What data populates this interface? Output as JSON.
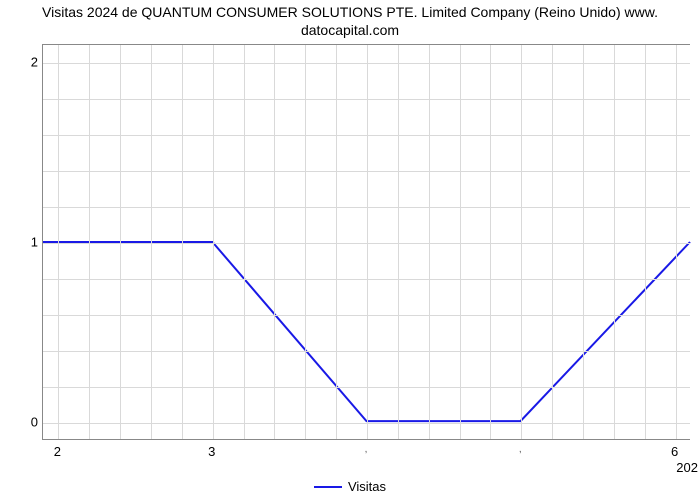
{
  "chart": {
    "type": "line",
    "title": "Visitas 2024 de QUANTUM CONSUMER SOLUTIONS PTE. Limited Company (Reino Unido) www.\ndatocapital.com",
    "title_fontsize": 14,
    "title_color": "#000000",
    "background_color": "#ffffff",
    "plot_border_color": "#888888",
    "grid_color": "#d9d9d9",
    "line_color": "#1919e6",
    "line_width": 2,
    "xlim": [
      1.9,
      6.1
    ],
    "ylim": [
      -0.1,
      2.1
    ],
    "x_major_ticks": [
      2,
      3,
      6
    ],
    "x_minor_ticks": [
      4,
      5
    ],
    "y_major_ticks": [
      0,
      1,
      2
    ],
    "y_minor_ticks": [],
    "x_minor_gridlines": [
      2.2,
      2.4,
      2.6,
      2.8,
      3.2,
      3.4,
      3.6,
      3.8,
      4.2,
      4.4,
      4.6,
      4.8,
      5.2,
      5.4,
      5.6,
      5.8
    ],
    "y_minor_gridlines": [
      0.2,
      0.4,
      0.6,
      0.8,
      1.2,
      1.4,
      1.6,
      1.8
    ],
    "x_sublabel_right": "202",
    "series": [
      {
        "name": "Visitas",
        "x": [
          1.9,
          3.0,
          4.0,
          5.0,
          6.1
        ],
        "y": [
          1.0,
          1.0,
          0.0,
          0.0,
          1.0
        ]
      }
    ],
    "legend_label": "Visitas"
  }
}
